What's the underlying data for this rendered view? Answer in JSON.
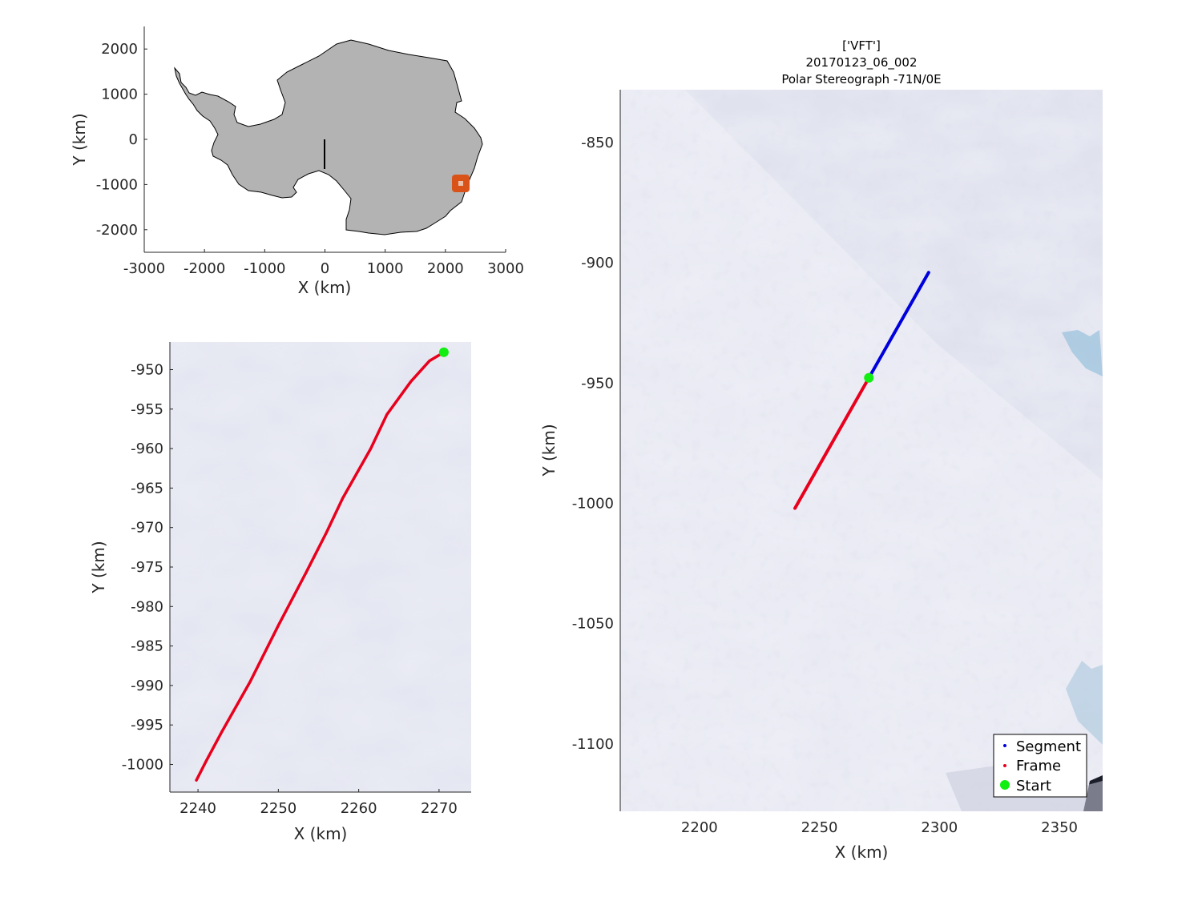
{
  "figure": {
    "title_lines": [
      "['VFT']",
      "20170123_06_002",
      "Polar Stereograph -71N/0E"
    ]
  },
  "colors": {
    "segment": "#0000dd",
    "frame": "#e8001c",
    "start": "#11ee11",
    "landmass": "#b3b3b3",
    "location_marker": "#d95319",
    "ice_background": "#e6e8f2"
  },
  "chart_data": [
    {
      "id": "overview",
      "type": "map",
      "xlabel": "X (km)",
      "ylabel": "Y (km)",
      "xlim": [
        -3000,
        3000
      ],
      "ylim": [
        -2500,
        2500
      ],
      "xticks": [
        -3000,
        -2000,
        -1000,
        0,
        1000,
        2000,
        3000
      ],
      "yticks": [
        -2000,
        -1000,
        0,
        1000,
        2000
      ],
      "grid": false,
      "prime_meridian_line": {
        "x": [
          0,
          0
        ],
        "y": [
          0,
          -660
        ]
      },
      "location_marker": {
        "x": 2255,
        "y": -975,
        "icon": "square-marker"
      }
    },
    {
      "id": "frame-detail",
      "type": "line",
      "xlabel": "X (km)",
      "ylabel": "Y (km)",
      "xlim": [
        2236.5,
        2274.0
      ],
      "ylim": [
        -1003.5,
        -946.5
      ],
      "xticks": [
        2240,
        2250,
        2260,
        2270
      ],
      "yticks": [
        -950,
        -955,
        -960,
        -965,
        -970,
        -975,
        -980,
        -985,
        -990,
        -995,
        -1000
      ],
      "grid": false,
      "series": [
        {
          "x": [
            2239.8,
            2241.0,
            2243.0,
            2246.5,
            2250.0,
            2253.5,
            2256.0,
            2258.0,
            2261.5,
            2263.5,
            2266.5,
            2268.8,
            2270.6
          ],
          "y": [
            -1002.0,
            -999.6,
            -995.8,
            -989.5,
            -982.4,
            -975.6,
            -970.6,
            -966.3,
            -960.0,
            -955.7,
            -951.5,
            -948.9,
            -947.8
          ]
        }
      ],
      "start_point": {
        "x": 2270.6,
        "y": -947.8
      }
    },
    {
      "id": "segment-map",
      "type": "line",
      "xlabel": "X (km)",
      "ylabel": "Y (km)",
      "xlim": [
        2167,
        2368
      ],
      "ylim": [
        -1128,
        -828
      ],
      "xticks": [
        2200,
        2250,
        2300,
        2350
      ],
      "yticks": [
        -850,
        -900,
        -950,
        -1000,
        -1050,
        -1100
      ],
      "grid": false,
      "legend_position": "bottom-right",
      "series": [
        {
          "name": "Segment",
          "x": [
            2270.6,
            2295.5
          ],
          "y": [
            -947.8,
            -904.0
          ]
        },
        {
          "name": "Frame",
          "x": [
            2239.8,
            2270.6
          ],
          "y": [
            -1002.0,
            -947.8
          ]
        }
      ],
      "start_point": {
        "name": "Start",
        "x": 2270.6,
        "y": -947.8
      }
    }
  ]
}
